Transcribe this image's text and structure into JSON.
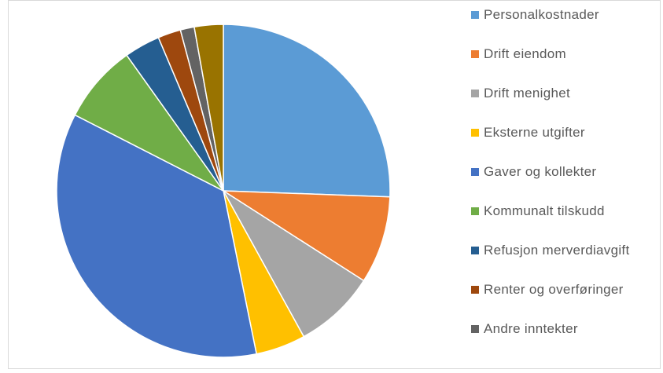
{
  "chart_data": {
    "type": "pie",
    "title": "",
    "legend_position": "right",
    "start_angle_deg": 0,
    "direction": "clockwise",
    "slices": [
      {
        "label": "Personalkostnader",
        "value": 26.5,
        "color": "#5B9BD5"
      },
      {
        "label": "Drift eiendom",
        "value": 8.8,
        "color": "#ED7D31"
      },
      {
        "label": "Drift menighet",
        "value": 8.2,
        "color": "#A5A5A5"
      },
      {
        "label": "Eksterne utgifter",
        "value": 5.0,
        "color": "#FFC000"
      },
      {
        "label": "Gaver og kollekter",
        "value": 37.0,
        "color": "#4472C4"
      },
      {
        "label": "Kommunalt tilskudd",
        "value": 7.9,
        "color": "#70AD47"
      },
      {
        "label": "Refusjon merverdiavgift",
        "value": 3.6,
        "color": "#255E91"
      },
      {
        "label": "Renter og overføringer",
        "value": 2.3,
        "color": "#9E480E"
      },
      {
        "label": "Andre inntekter",
        "value": 1.4,
        "color": "#636363"
      },
      {
        "label": "",
        "value": 2.9,
        "color": "#997300"
      }
    ]
  },
  "legend": {
    "items": [
      {
        "label": "Personalkostnader",
        "color": "#5B9BD5"
      },
      {
        "label": "Drift eiendom",
        "color": "#ED7D31"
      },
      {
        "label": "Drift menighet",
        "color": "#A5A5A5"
      },
      {
        "label": "Eksterne utgifter",
        "color": "#FFC000"
      },
      {
        "label": "Gaver og kollekter",
        "color": "#4472C4"
      },
      {
        "label": "Kommunalt tilskudd",
        "color": "#70AD47"
      },
      {
        "label": "Refusjon merverdiavgift",
        "color": "#255E91"
      },
      {
        "label": "Renter og overføringer",
        "color": "#9E480E"
      },
      {
        "label": "Andre inntekter",
        "color": "#636363"
      }
    ]
  }
}
